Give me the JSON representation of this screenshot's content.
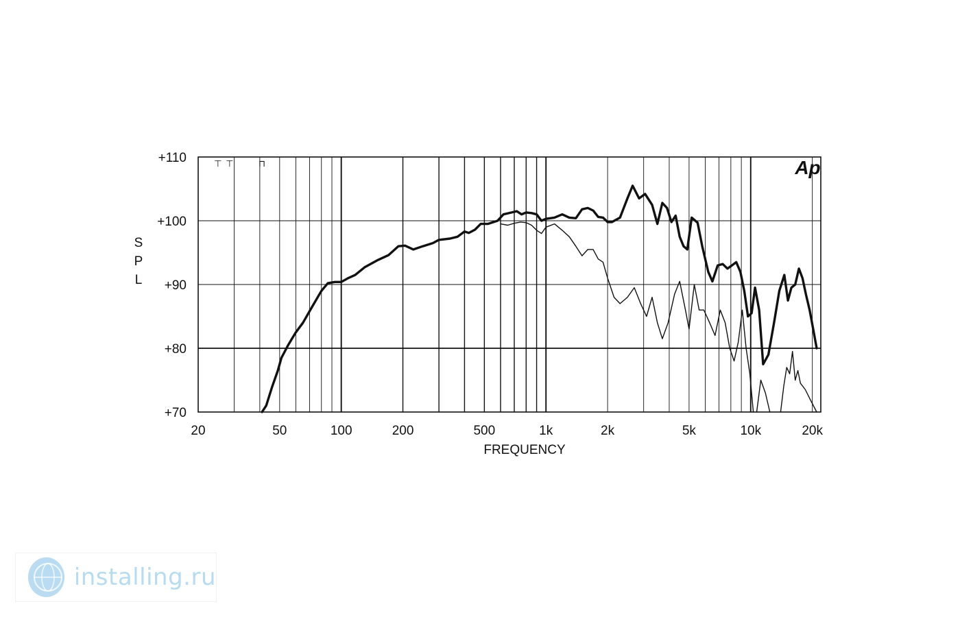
{
  "chart_data": {
    "type": "line",
    "xscale": "log",
    "xlim": [
      20,
      22000
    ],
    "ylim": [
      70,
      110
    ],
    "xlabel": "FREQUENCY",
    "ylabel": "S P L",
    "grid": true,
    "logo_text": "Ap",
    "xticks": [
      {
        "value": 20,
        "label": "20"
      },
      {
        "value": 50,
        "label": "50"
      },
      {
        "value": 100,
        "label": "100"
      },
      {
        "value": 200,
        "label": "200"
      },
      {
        "value": 500,
        "label": "500"
      },
      {
        "value": 1000,
        "label": "1k"
      },
      {
        "value": 2000,
        "label": "2k"
      },
      {
        "value": 5000,
        "label": "5k"
      },
      {
        "value": 10000,
        "label": "10k"
      },
      {
        "value": 20000,
        "label": "20k"
      }
    ],
    "yticks": [
      {
        "value": 70,
        "label": "+70"
      },
      {
        "value": 80,
        "label": "+80"
      },
      {
        "value": 90,
        "label": "+90"
      },
      {
        "value": 100,
        "label": "+100"
      },
      {
        "value": 110,
        "label": "+110"
      }
    ],
    "series": [
      {
        "style": "thick",
        "points": [
          [
            41,
            70
          ],
          [
            43,
            71
          ],
          [
            46,
            74
          ],
          [
            49,
            76.5
          ],
          [
            51,
            78.5
          ],
          [
            55,
            80.5
          ],
          [
            60,
            82.5
          ],
          [
            65,
            84
          ],
          [
            72,
            86.5
          ],
          [
            80,
            89
          ],
          [
            86,
            90.2
          ],
          [
            93,
            90.4
          ],
          [
            100,
            90.4
          ],
          [
            108,
            91
          ],
          [
            117,
            91.5
          ],
          [
            130,
            92.7
          ],
          [
            150,
            93.8
          ],
          [
            170,
            94.6
          ],
          [
            190,
            96
          ],
          [
            205,
            96.1
          ],
          [
            225,
            95.5
          ],
          [
            250,
            96
          ],
          [
            280,
            96.5
          ],
          [
            300,
            97
          ],
          [
            340,
            97.2
          ],
          [
            370,
            97.5
          ],
          [
            400,
            98.3
          ],
          [
            420,
            98.1
          ],
          [
            450,
            98.6
          ],
          [
            480,
            99.5
          ],
          [
            520,
            99.5
          ],
          [
            580,
            100
          ],
          [
            620,
            101
          ],
          [
            680,
            101.3
          ],
          [
            720,
            101.5
          ],
          [
            760,
            101
          ],
          [
            800,
            101.3
          ],
          [
            850,
            101.2
          ],
          [
            900,
            101
          ],
          [
            950,
            100
          ],
          [
            1000,
            100.3
          ],
          [
            1100,
            100.5
          ],
          [
            1200,
            101
          ],
          [
            1300,
            100.5
          ],
          [
            1400,
            100.4
          ],
          [
            1500,
            101.8
          ],
          [
            1600,
            102
          ],
          [
            1700,
            101.6
          ],
          [
            1800,
            100.6
          ],
          [
            1900,
            100.5
          ],
          [
            2000,
            99.8
          ],
          [
            2100,
            99.8
          ],
          [
            2300,
            100.5
          ],
          [
            2500,
            103.5
          ],
          [
            2650,
            105.5
          ],
          [
            2850,
            103.5
          ],
          [
            3050,
            104.2
          ],
          [
            3300,
            102.5
          ],
          [
            3500,
            99.5
          ],
          [
            3700,
            102.8
          ],
          [
            3900,
            102
          ],
          [
            4100,
            99.8
          ],
          [
            4300,
            100.8
          ],
          [
            4500,
            97.5
          ],
          [
            4700,
            96
          ],
          [
            4900,
            95.5
          ],
          [
            5150,
            100.5
          ],
          [
            5500,
            99.7
          ],
          [
            5800,
            96
          ],
          [
            6200,
            92
          ],
          [
            6500,
            90.5
          ],
          [
            6900,
            93
          ],
          [
            7300,
            93.2
          ],
          [
            7700,
            92.5
          ],
          [
            8100,
            93
          ],
          [
            8500,
            93.5
          ],
          [
            8900,
            92
          ],
          [
            9300,
            89
          ],
          [
            9700,
            85
          ],
          [
            10100,
            85.5
          ],
          [
            10500,
            89.5
          ],
          [
            11000,
            86
          ],
          [
            11500,
            77.5
          ],
          [
            12200,
            79
          ],
          [
            13000,
            84
          ],
          [
            13800,
            89
          ],
          [
            14600,
            91.5
          ],
          [
            15200,
            87.5
          ],
          [
            15800,
            89.5
          ],
          [
            16500,
            90
          ],
          [
            17200,
            92.5
          ],
          [
            17900,
            91
          ],
          [
            18600,
            88.5
          ],
          [
            19400,
            86
          ],
          [
            20200,
            83
          ],
          [
            21000,
            80
          ]
        ]
      },
      {
        "style": "thin",
        "points": [
          [
            600,
            99.5
          ],
          [
            650,
            99.3
          ],
          [
            700,
            99.6
          ],
          [
            750,
            99.8
          ],
          [
            800,
            99.7
          ],
          [
            850,
            99.3
          ],
          [
            900,
            98.5
          ],
          [
            950,
            98
          ],
          [
            1000,
            99
          ],
          [
            1100,
            99.5
          ],
          [
            1200,
            98.5
          ],
          [
            1300,
            97.5
          ],
          [
            1400,
            96
          ],
          [
            1500,
            94.5
          ],
          [
            1600,
            95.5
          ],
          [
            1700,
            95.5
          ],
          [
            1800,
            94
          ],
          [
            1900,
            93.5
          ],
          [
            2000,
            91
          ],
          [
            2150,
            88
          ],
          [
            2300,
            87
          ],
          [
            2500,
            88
          ],
          [
            2700,
            89.5
          ],
          [
            2900,
            87
          ],
          [
            3100,
            85
          ],
          [
            3300,
            88
          ],
          [
            3500,
            84
          ],
          [
            3700,
            81.5
          ],
          [
            3950,
            84
          ],
          [
            4250,
            88.5
          ],
          [
            4500,
            90.5
          ],
          [
            4800,
            86
          ],
          [
            5000,
            83
          ],
          [
            5300,
            90
          ],
          [
            5600,
            86
          ],
          [
            5900,
            86
          ],
          [
            6300,
            84
          ],
          [
            6700,
            82
          ],
          [
            7100,
            86
          ],
          [
            7500,
            84
          ],
          [
            7900,
            80
          ],
          [
            8300,
            78
          ],
          [
            8700,
            81
          ],
          [
            9100,
            86
          ],
          [
            9500,
            80
          ],
          [
            9900,
            76
          ],
          [
            10300,
            70
          ]
        ]
      },
      {
        "style": "thin",
        "points": [
          [
            10700,
            70
          ],
          [
            11200,
            75
          ],
          [
            11800,
            73
          ],
          [
            12400,
            70
          ]
        ]
      },
      {
        "style": "thin",
        "points": [
          [
            14000,
            70
          ],
          [
            14500,
            74
          ],
          [
            15000,
            77
          ],
          [
            15500,
            76
          ],
          [
            16000,
            79.5
          ],
          [
            16500,
            75
          ],
          [
            17000,
            76.5
          ],
          [
            17500,
            74.5
          ],
          [
            18000,
            74
          ],
          [
            18500,
            73.5
          ],
          [
            19500,
            72
          ],
          [
            21000,
            70
          ]
        ]
      }
    ],
    "upper_markers": [
      {
        "freq": 25,
        "glyph": "⊤"
      },
      {
        "freq": 28.5,
        "glyph": "⊤"
      },
      {
        "freq": 41,
        "glyph": "⊓"
      }
    ]
  },
  "watermark": {
    "text": "installing.ru",
    "icon": "globe-icon"
  }
}
